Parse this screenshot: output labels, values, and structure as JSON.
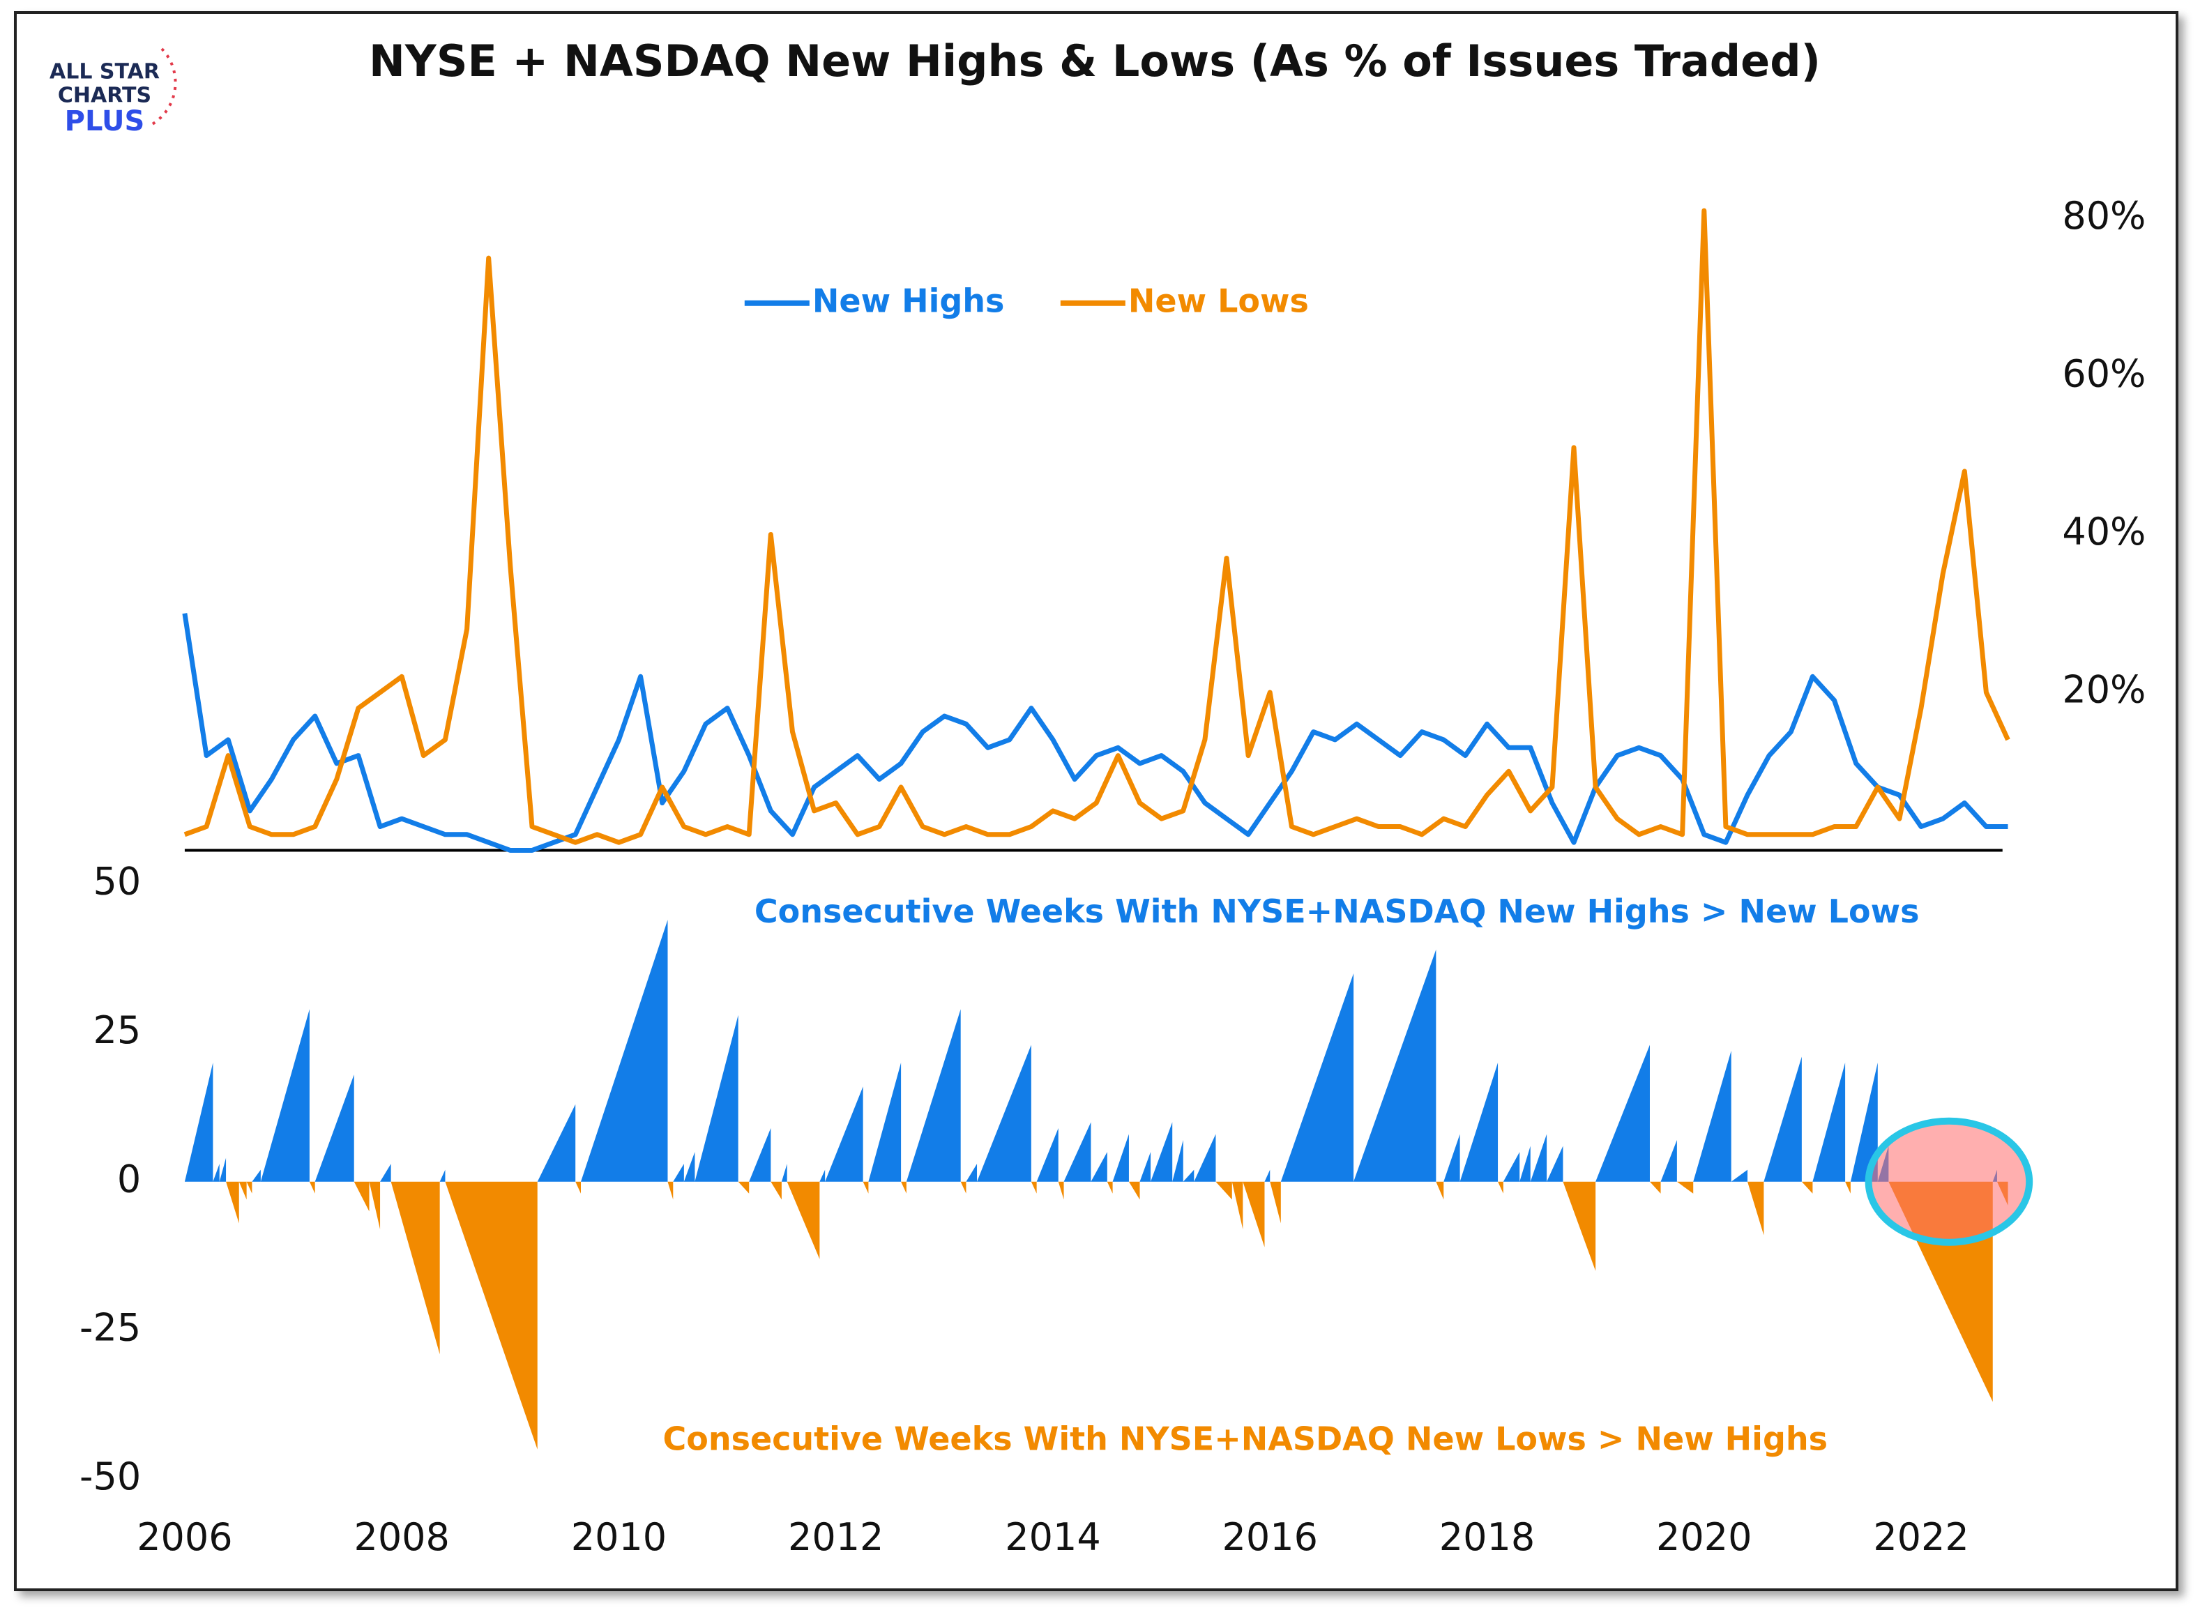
{
  "logo": [
    "ALL STAR",
    "CHARTS",
    "PLUS"
  ],
  "chart_data": [
    {
      "type": "line",
      "title": "NYSE + NASDAQ New Highs & Lows (As % of Issues Traded)",
      "x": [
        2006,
        2006.2,
        2006.4,
        2006.6,
        2006.8,
        2007,
        2007.2,
        2007.4,
        2007.6,
        2007.8,
        2008,
        2008.2,
        2008.4,
        2008.6,
        2008.8,
        2009,
        2009.2,
        2009.4,
        2009.6,
        2009.8,
        2010,
        2010.2,
        2010.4,
        2010.6,
        2010.8,
        2011,
        2011.2,
        2011.4,
        2011.6,
        2011.8,
        2012,
        2012.2,
        2012.4,
        2012.6,
        2012.8,
        2013,
        2013.2,
        2013.4,
        2013.6,
        2013.8,
        2014,
        2014.2,
        2014.4,
        2014.6,
        2014.8,
        2015,
        2015.2,
        2015.4,
        2015.6,
        2015.8,
        2016,
        2016.2,
        2016.4,
        2016.6,
        2016.8,
        2017,
        2017.2,
        2017.4,
        2017.6,
        2017.8,
        2018,
        2018.2,
        2018.4,
        2018.6,
        2018.8,
        2019,
        2019.2,
        2019.4,
        2019.6,
        2019.8,
        2020,
        2020.2,
        2020.4,
        2020.6,
        2020.8,
        2021,
        2021.2,
        2021.4,
        2021.6,
        2021.8,
        2022,
        2022.2,
        2022.4,
        2022.6,
        2022.8
      ],
      "series": [
        {
          "name": "New Highs",
          "color": "#127de8",
          "values": [
            30,
            12,
            14,
            5,
            9,
            14,
            17,
            11,
            12,
            3,
            4,
            3,
            2,
            2,
            1,
            0,
            0,
            1,
            2,
            8,
            14,
            22,
            6,
            10,
            16,
            18,
            12,
            5,
            2,
            8,
            10,
            12,
            9,
            11,
            15,
            17,
            16,
            13,
            14,
            18,
            14,
            9,
            12,
            13,
            11,
            12,
            10,
            6,
            4,
            2,
            6,
            10,
            15,
            14,
            16,
            14,
            12,
            15,
            14,
            12,
            16,
            13,
            13,
            6,
            1,
            8,
            12,
            13,
            12,
            9,
            2,
            1,
            7,
            12,
            15,
            22,
            19,
            11,
            8,
            7,
            3,
            4,
            6,
            3,
            3
          ]
        },
        {
          "name": "New Lows",
          "color": "#f28a00",
          "values": [
            2,
            3,
            12,
            3,
            2,
            2,
            3,
            9,
            18,
            20,
            22,
            12,
            14,
            28,
            75,
            36,
            3,
            2,
            1,
            2,
            1,
            2,
            8,
            3,
            2,
            3,
            2,
            40,
            15,
            5,
            6,
            2,
            3,
            8,
            3,
            2,
            3,
            2,
            2,
            3,
            5,
            4,
            6,
            12,
            6,
            4,
            5,
            14,
            37,
            12,
            20,
            3,
            2,
            3,
            4,
            3,
            3,
            2,
            4,
            3,
            7,
            10,
            5,
            8,
            51,
            8,
            4,
            2,
            3,
            2,
            81,
            3,
            2,
            2,
            2,
            2,
            3,
            3,
            8,
            4,
            18,
            35,
            48,
            20,
            14
          ]
        }
      ],
      "xlim": [
        2006,
        2022.75
      ],
      "ylim": [
        0,
        80
      ],
      "yticks": [
        {
          "value": 20,
          "label": "20%"
        },
        {
          "value": 40,
          "label": "40%"
        },
        {
          "value": 60,
          "label": "60%"
        },
        {
          "value": 80,
          "label": "80%"
        }
      ]
    },
    {
      "type": "area",
      "annotations": [
        {
          "text": "Consecutive Weeks With NYSE+NASDAQ New Highs > New Lows",
          "color": "#127de8"
        },
        {
          "text": "Consecutive Weeks With NYSE+NASDAQ New Lows > New Highs",
          "color": "#f28a00"
        }
      ],
      "pos_color": "#127de8",
      "neg_color": "#f28a00",
      "x": [
        2006.26,
        2006.32,
        2006.38,
        2006.5,
        2006.57,
        2006.62,
        2006.7,
        2007.15,
        2007.2,
        2007.56,
        2007.7,
        2007.8,
        2007.9,
        2008.35,
        2008.4,
        2009.25,
        2009.6,
        2009.65,
        2010.45,
        2010.5,
        2010.6,
        2010.7,
        2011.1,
        2011.2,
        2011.4,
        2011.5,
        2011.55,
        2011.85,
        2011.9,
        2012.25,
        2012.3,
        2012.6,
        2012.65,
        2013.15,
        2013.2,
        2013.3,
        2013.8,
        2013.85,
        2014.05,
        2014.1,
        2014.35,
        2014.5,
        2014.55,
        2014.7,
        2014.8,
        2014.9,
        2015.1,
        2015.2,
        2015.3,
        2015.5,
        2015.65,
        2015.75,
        2015.95,
        2016.0,
        2016.1,
        2016.77,
        2017.53,
        2017.6,
        2017.75,
        2018.1,
        2018.15,
        2018.3,
        2018.4,
        2018.55,
        2018.7,
        2019.0,
        2019.5,
        2019.6,
        2019.75,
        2019.9,
        2020.25,
        2020.4,
        2020.55,
        2020.9,
        2021.0,
        2021.3,
        2021.35,
        2021.6,
        2021.7,
        2022.66,
        2022.7,
        2022.8
      ],
      "values": [
        20,
        3,
        4,
        -7,
        -3,
        -2,
        2,
        29,
        -2,
        18,
        -5,
        -8,
        3,
        -29,
        2,
        -45,
        13,
        -2,
        44,
        -3,
        3,
        5,
        28,
        -2,
        9,
        -3,
        3,
        -13,
        2,
        16,
        -2,
        20,
        -2,
        29,
        -2,
        3,
        23,
        -2,
        9,
        -3,
        10,
        5,
        -2,
        8,
        -3,
        5,
        10,
        7,
        2,
        8,
        -3,
        -8,
        -11,
        2,
        -7,
        35,
        39,
        -3,
        8,
        20,
        -2,
        5,
        6,
        8,
        6,
        -15,
        23,
        -2,
        7,
        -2,
        22,
        2,
        -9,
        21,
        -2,
        20,
        -2,
        20,
        6,
        -37,
        2,
        -4
      ],
      "xlim": [
        2006,
        2022.75
      ],
      "ylim": [
        -50,
        50
      ],
      "xticks": [
        2006,
        2008,
        2010,
        2012,
        2014,
        2016,
        2018,
        2020,
        2022
      ],
      "yticks": [
        50,
        25,
        0,
        -25,
        -50
      ]
    }
  ]
}
